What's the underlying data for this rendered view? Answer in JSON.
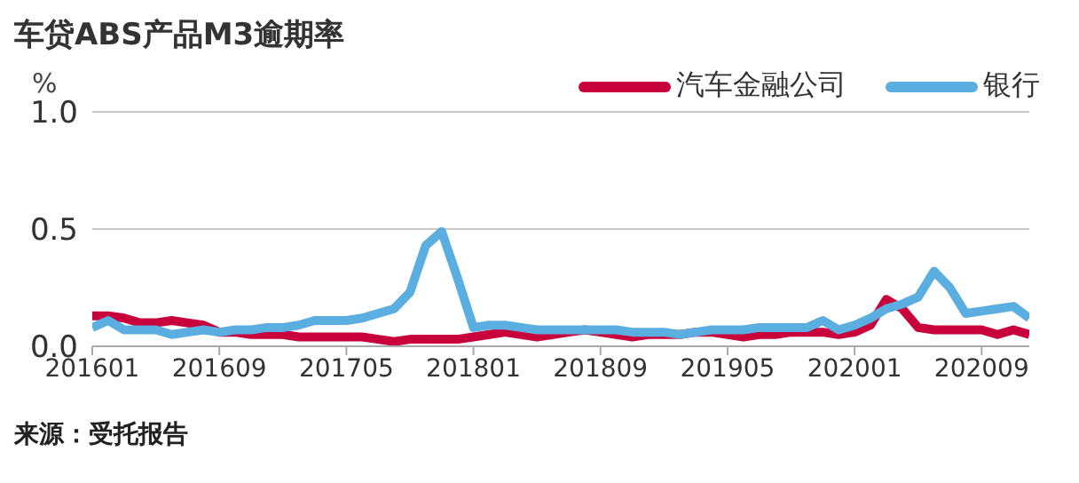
{
  "chart_data": {
    "type": "line",
    "title": "车贷ABS产品M3逾期率",
    "ylabel": "%",
    "annotations": [
      "来源：受托报告"
    ],
    "categories": [
      "201601",
      null,
      null,
      null,
      null,
      null,
      null,
      null,
      "201609",
      null,
      null,
      null,
      null,
      null,
      null,
      null,
      "201705",
      null,
      null,
      null,
      null,
      null,
      null,
      null,
      "201801",
      null,
      null,
      null,
      null,
      null,
      null,
      null,
      "201809",
      null,
      null,
      null,
      null,
      null,
      null,
      null,
      "201905",
      null,
      null,
      null,
      null,
      null,
      null,
      null,
      "202001",
      null,
      null,
      null,
      null,
      null,
      null,
      null,
      "202009",
      null,
      null,
      null
    ],
    "series": [
      {
        "name": "汽车金融公司",
        "color": "#c8003c",
        "values": [
          0.13,
          0.13,
          0.12,
          0.1,
          0.1,
          0.11,
          0.1,
          0.09,
          0.06,
          0.06,
          0.05,
          0.05,
          0.05,
          0.04,
          0.04,
          0.04,
          0.04,
          0.04,
          0.03,
          0.02,
          0.03,
          0.03,
          0.03,
          0.03,
          0.04,
          0.05,
          0.06,
          0.05,
          0.04,
          0.05,
          0.06,
          0.07,
          0.06,
          0.05,
          0.04,
          0.05,
          0.05,
          0.05,
          0.06,
          0.06,
          0.05,
          0.04,
          0.05,
          0.05,
          0.06,
          0.06,
          0.06,
          0.05,
          0.06,
          0.09,
          0.2,
          0.16,
          0.08,
          0.07,
          0.07,
          0.07,
          0.07,
          0.05,
          0.07,
          0.05
        ]
      },
      {
        "name": "银行",
        "color": "#5aaee0",
        "values": [
          0.08,
          0.11,
          0.07,
          0.07,
          0.07,
          0.05,
          0.06,
          0.07,
          0.06,
          0.07,
          0.07,
          0.08,
          0.08,
          0.09,
          0.11,
          0.11,
          0.11,
          0.12,
          0.14,
          0.16,
          0.23,
          0.43,
          0.49,
          0.29,
          0.08,
          0.09,
          0.09,
          0.08,
          0.07,
          0.07,
          0.07,
          0.07,
          0.07,
          0.07,
          0.06,
          0.06,
          0.06,
          0.05,
          0.06,
          0.07,
          0.07,
          0.07,
          0.08,
          0.08,
          0.08,
          0.08,
          0.11,
          0.07,
          0.09,
          0.12,
          0.16,
          0.18,
          0.21,
          0.32,
          0.25,
          0.14,
          0.15,
          0.16,
          0.17,
          0.12
        ]
      }
    ],
    "ylim": [
      0,
      1
    ],
    "yticks": [
      {
        "value": 0,
        "label": "0.0"
      },
      0.5,
      {
        "value": 1,
        "label": "1.0"
      }
    ],
    "grid": "y",
    "legend": "top right",
    "marker": "none",
    "line_style": "solid"
  }
}
